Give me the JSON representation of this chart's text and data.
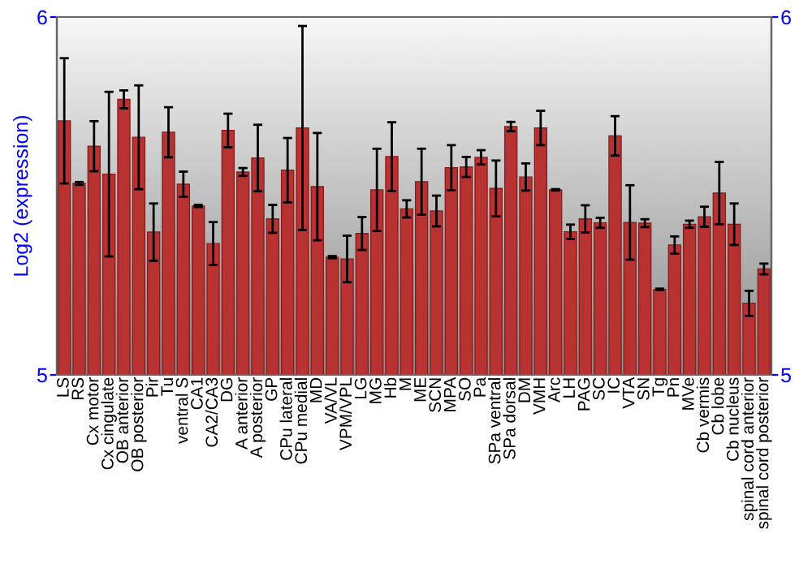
{
  "chart_data": {
    "type": "bar",
    "ylabel": "Log2 (expression)",
    "categories": [
      "LS",
      "RS",
      "Cx motor",
      "Cx cingulate",
      "OB anterior",
      "OB posterior",
      "Pir",
      "Tu",
      "ventral S",
      "CA1",
      "CA2/CA3",
      "DG",
      "A anterior",
      "A posterior",
      "GP",
      "CPu lateral",
      "CPu medial",
      "MD",
      "VA/VL",
      "VPM/VPL",
      "LG",
      "MG",
      "Hb",
      "M",
      "ME",
      "SCN",
      "MPA",
      "SO",
      "Pa",
      "SPa ventral",
      "SPa dorsal",
      "DM",
      "VMH",
      "Arc",
      "LH",
      "PAG",
      "SC",
      "IC",
      "VTA",
      "SN",
      "Tg",
      "Pn",
      "MVe",
      "Cb vermis",
      "Cb lobe",
      "Cb nucleus",
      "spinal cord anterior",
      "spinal cord posterior"
    ],
    "values": [
      5.71,
      5.535,
      5.639,
      5.561,
      5.77,
      5.664,
      5.399,
      5.678,
      5.533,
      5.472,
      5.367,
      5.683,
      5.567,
      5.606,
      5.436,
      5.572,
      5.69,
      5.526,
      5.329,
      5.324,
      5.395,
      5.517,
      5.61,
      5.464,
      5.54,
      5.458,
      5.579,
      5.581,
      5.608,
      5.521,
      5.694,
      5.553,
      5.69,
      5.517,
      5.4,
      5.436,
      5.425,
      5.668,
      5.426,
      5.424,
      5.239,
      5.363,
      5.421,
      5.442,
      5.508,
      5.421,
      5.2,
      5.296
    ],
    "errors": [
      0.175,
      0.004,
      0.07,
      0.23,
      0.025,
      0.145,
      0.08,
      0.07,
      0.035,
      0.003,
      0.06,
      0.047,
      0.011,
      0.093,
      0.039,
      0.09,
      0.285,
      0.15,
      0.003,
      0.065,
      0.046,
      0.115,
      0.096,
      0.024,
      0.092,
      0.043,
      0.063,
      0.028,
      0.02,
      0.078,
      0.013,
      0.038,
      0.048,
      0.002,
      0.02,
      0.038,
      0.014,
      0.055,
      0.104,
      0.011,
      0.002,
      0.024,
      0.01,
      0.028,
      0.087,
      0.058,
      0.035,
      0.015
    ],
    "color": "#b83232",
    "ylim": [
      5,
      6
    ],
    "yticks": [
      5,
      6
    ],
    "y2lim": [
      5,
      6
    ],
    "y2ticks": [
      5,
      6
    ],
    "grid": false,
    "legend": false
  }
}
